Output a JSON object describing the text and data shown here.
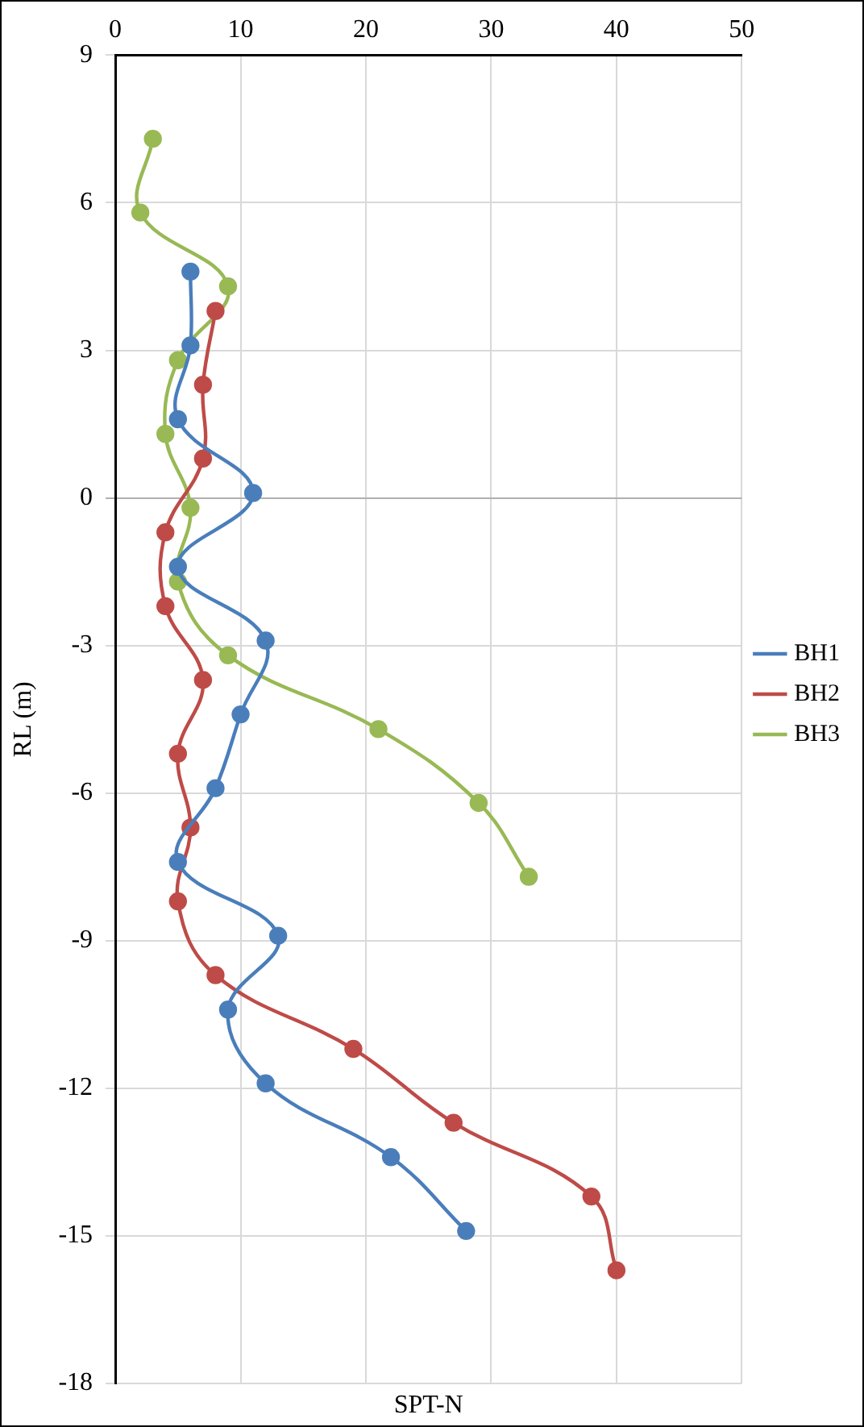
{
  "chart_data": {
    "type": "line",
    "xlabel": "SPT-N",
    "ylabel": "RL (m)",
    "xlim": [
      0,
      50
    ],
    "xticks": [
      0,
      10,
      20,
      30,
      40,
      50
    ],
    "ylim": [
      -18,
      9
    ],
    "yticks": [
      -18,
      -15,
      -12,
      -9,
      -6,
      -3,
      0,
      3,
      6,
      9
    ],
    "grid": true,
    "legend": "right",
    "marker": "circle",
    "line_style": "solid",
    "series": [
      {
        "name": "BH1",
        "color": "#4a7ebb",
        "x": [
          6,
          6,
          5,
          11,
          5,
          12,
          10,
          8,
          5,
          13,
          9,
          12,
          22,
          28
        ],
        "values": [
          4.6,
          3.1,
          1.6,
          0.1,
          -1.4,
          -2.9,
          -4.4,
          -5.9,
          -7.4,
          -8.9,
          -10.4,
          -11.9,
          -13.4,
          -14.9
        ]
      },
      {
        "name": "BH2",
        "color": "#be4b48",
        "x": [
          8,
          7,
          7,
          4,
          4,
          7,
          5,
          6,
          5,
          8,
          19,
          27,
          38,
          40
        ],
        "values": [
          3.8,
          2.3,
          0.8,
          -0.7,
          -2.2,
          -3.7,
          -5.2,
          -6.7,
          -8.2,
          -9.7,
          -11.2,
          -12.7,
          -14.2,
          -15.7
        ]
      },
      {
        "name": "BH3",
        "color": "#98b954",
        "x": [
          3,
          2,
          9,
          5,
          4,
          6,
          5,
          9,
          21,
          29,
          33
        ],
        "values": [
          7.3,
          5.8,
          4.3,
          2.8,
          1.3,
          -0.2,
          -1.7,
          -3.2,
          -4.7,
          -6.2,
          -7.7
        ]
      }
    ]
  }
}
